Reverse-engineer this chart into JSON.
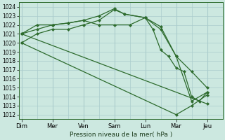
{
  "background_color": "#cce8e0",
  "grid_color": "#aacccc",
  "line_color": "#2d6b2d",
  "marker_color": "#2d6b2d",
  "xlabel": "Pression niveau de la mer( hPa )",
  "ylim": [
    1011.5,
    1024.5
  ],
  "yticks": [
    1012,
    1013,
    1014,
    1015,
    1016,
    1017,
    1018,
    1019,
    1020,
    1021,
    1022,
    1023,
    1024
  ],
  "day_labels": [
    "Dim",
    "Mer",
    "Ven",
    "Sam",
    "Lun",
    "Mar",
    "Jeu"
  ],
  "day_positions": [
    0,
    12,
    24,
    36,
    48,
    60,
    72
  ],
  "xlim": [
    -1,
    78
  ],
  "series": [
    {
      "x": [
        0,
        6,
        12,
        18,
        24,
        30,
        36,
        42,
        48,
        54,
        60,
        66,
        72
      ],
      "y": [
        1021.0,
        1022.0,
        1022.0,
        1022.2,
        1022.5,
        1022.0,
        1022.0,
        1022.0,
        1022.8,
        1021.8,
        1018.5,
        1016.8,
        1015.0
      ]
    },
    {
      "x": [
        0,
        6,
        12,
        18,
        24,
        30,
        36,
        40,
        48,
        54,
        60,
        66,
        72
      ],
      "y": [
        1020.0,
        1021.0,
        1021.5,
        1021.5,
        1022.0,
        1022.5,
        1023.7,
        1023.2,
        1022.8,
        1021.5,
        1018.5,
        1013.5,
        1014.5
      ]
    },
    {
      "x": [
        0,
        72
      ],
      "y": [
        1021.0,
        1013.2
      ]
    },
    {
      "x": [
        0,
        60,
        66,
        72
      ],
      "y": [
        1020.0,
        1012.0,
        1013.0,
        1014.2
      ]
    },
    {
      "x": [
        0,
        6,
        12,
        18,
        24,
        30,
        36,
        40,
        48,
        51,
        54,
        57,
        60,
        63,
        66,
        69,
        72
      ],
      "y": [
        1021.0,
        1021.5,
        1022.0,
        1022.2,
        1022.5,
        1023.0,
        1023.8,
        1023.2,
        1022.8,
        1021.5,
        1019.2,
        1018.5,
        1017.2,
        1016.8,
        1014.0,
        1013.5,
        1014.5
      ]
    }
  ]
}
